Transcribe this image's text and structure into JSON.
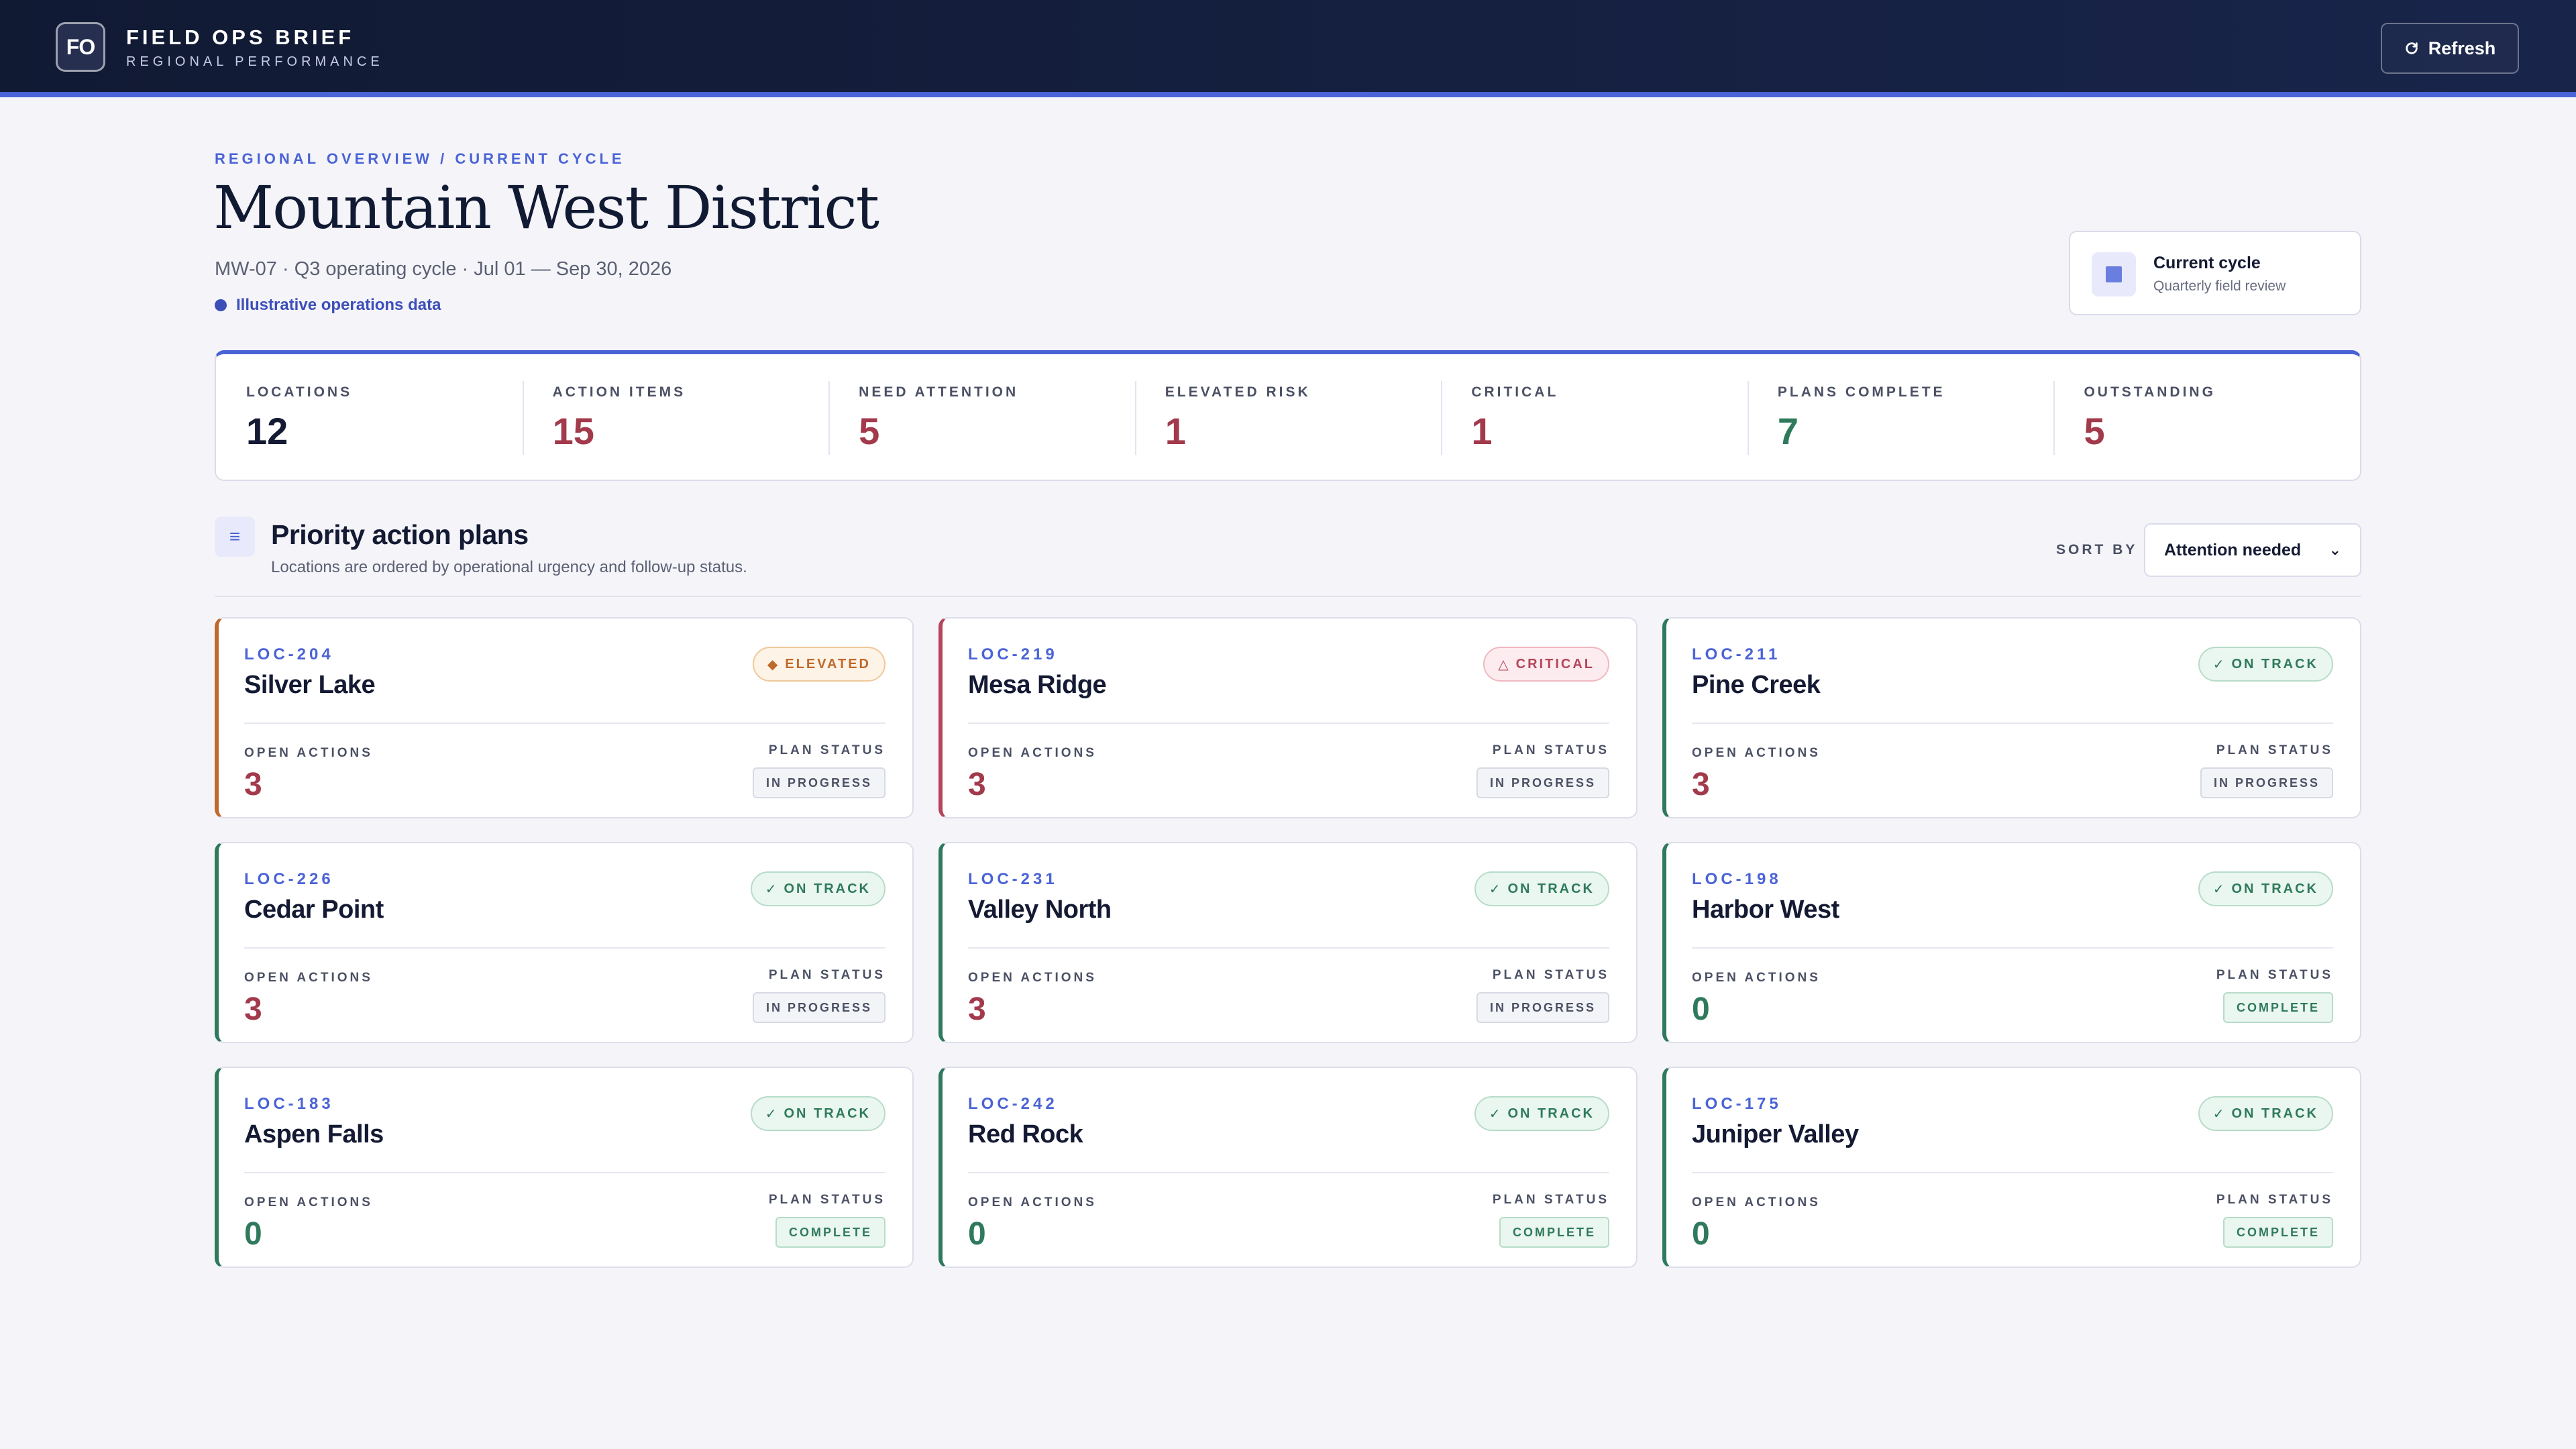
{
  "header": {
    "logo": "FO",
    "title": "FIELD OPS BRIEF",
    "subtitle": "REGIONAL PERFORMANCE",
    "refresh_label": "Refresh"
  },
  "page": {
    "breadcrumb": "REGIONAL OVERVIEW / CURRENT CYCLE",
    "title": "Mountain West District",
    "meta": "MW-07 · Q3 operating cycle · Jul 01 — Sep 30, 2026",
    "data_note": "Illustrative operations data"
  },
  "cycle": {
    "title": "Current cycle",
    "subtitle": "Quarterly field review"
  },
  "stats": [
    {
      "label": "LOCATIONS",
      "value": "12",
      "color": "#141a33"
    },
    {
      "label": "ACTION ITEMS",
      "value": "15",
      "color": "#a23a4c"
    },
    {
      "label": "NEED ATTENTION",
      "value": "5",
      "color": "#a23a4c"
    },
    {
      "label": "ELEVATED RISK",
      "value": "1",
      "color": "#a23a4c"
    },
    {
      "label": "CRITICAL",
      "value": "1",
      "color": "#a23a4c"
    },
    {
      "label": "PLANS COMPLETE",
      "value": "7",
      "color": "#2f7a5c"
    },
    {
      "label": "OUTSTANDING",
      "value": "5",
      "color": "#a23a4c"
    }
  ],
  "section": {
    "title": "Priority action plans",
    "subtitle": "Locations are ordered by operational urgency and follow-up status.",
    "sort_label": "SORT BY",
    "sort_value": "Attention needed"
  },
  "card_labels": {
    "open_actions": "OPEN ACTIONS",
    "plan_status": "PLAN STATUS"
  },
  "colors": {
    "elevated": "#c0692b",
    "critical": "#b4455a",
    "on_track": "#2f7a5c",
    "accent": "#4a63d6"
  },
  "cards": [
    {
      "code": "LOC-204",
      "name": "Silver Lake",
      "badge": "ELEVATED",
      "badge_icon": "diamond-icon",
      "badge_glyph": "◆",
      "badge_type": "elevated",
      "open_actions": "3",
      "plan_status": "IN PROGRESS",
      "plan_type": "progress"
    },
    {
      "code": "LOC-219",
      "name": "Mesa Ridge",
      "badge": "CRITICAL",
      "badge_icon": "warning-icon",
      "badge_glyph": "△",
      "badge_type": "critical",
      "open_actions": "3",
      "plan_status": "IN PROGRESS",
      "plan_type": "progress"
    },
    {
      "code": "LOC-211",
      "name": "Pine Creek",
      "badge": "ON TRACK",
      "badge_icon": "check-icon",
      "badge_glyph": "✓",
      "badge_type": "on_track",
      "open_actions": "3",
      "plan_status": "IN PROGRESS",
      "plan_type": "progress"
    },
    {
      "code": "LOC-226",
      "name": "Cedar Point",
      "badge": "ON TRACK",
      "badge_icon": "check-icon",
      "badge_glyph": "✓",
      "badge_type": "on_track",
      "open_actions": "3",
      "plan_status": "IN PROGRESS",
      "plan_type": "progress"
    },
    {
      "code": "LOC-231",
      "name": "Valley North",
      "badge": "ON TRACK",
      "badge_icon": "check-icon",
      "badge_glyph": "✓",
      "badge_type": "on_track",
      "open_actions": "3",
      "plan_status": "IN PROGRESS",
      "plan_type": "progress"
    },
    {
      "code": "LOC-198",
      "name": "Harbor West",
      "badge": "ON TRACK",
      "badge_icon": "check-icon",
      "badge_glyph": "✓",
      "badge_type": "on_track",
      "open_actions": "0",
      "plan_status": "COMPLETE",
      "plan_type": "complete"
    },
    {
      "code": "LOC-183",
      "name": "Aspen Falls",
      "badge": "ON TRACK",
      "badge_icon": "check-icon",
      "badge_glyph": "✓",
      "badge_type": "on_track",
      "open_actions": "0",
      "plan_status": "COMPLETE",
      "plan_type": "complete"
    },
    {
      "code": "LOC-242",
      "name": "Red Rock",
      "badge": "ON TRACK",
      "badge_icon": "check-icon",
      "badge_glyph": "✓",
      "badge_type": "on_track",
      "open_actions": "0",
      "plan_status": "COMPLETE",
      "plan_type": "complete"
    },
    {
      "code": "LOC-175",
      "name": "Juniper Valley",
      "badge": "ON TRACK",
      "badge_icon": "check-icon",
      "badge_glyph": "✓",
      "badge_type": "on_track",
      "open_actions": "0",
      "plan_status": "COMPLETE",
      "plan_type": "complete"
    }
  ]
}
